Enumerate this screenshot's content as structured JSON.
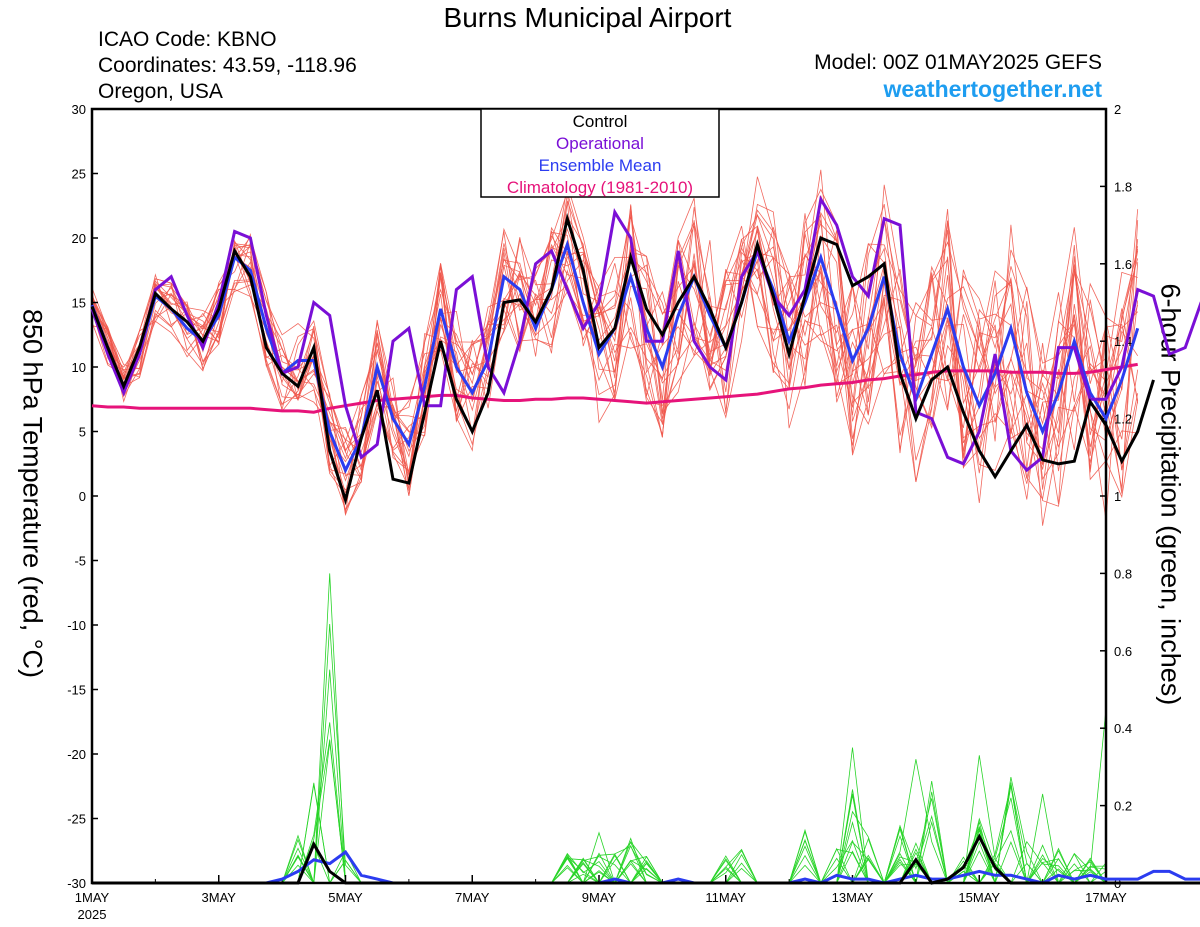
{
  "header": {
    "title": "Burns Municipal Airport",
    "icao": "ICAO Code: KBNO",
    "coords": "Coordinates: 43.59, -118.96",
    "location": "Oregon, USA",
    "model": "Model: 00Z 01MAY2025 GEFS",
    "site": "weathertogether.net"
  },
  "chart_data": {
    "type": "line",
    "ylabel": "850 hPa Temperature (red, °C)",
    "y2label": "6-hour Precipitation (green, inches)",
    "ylim": [
      -30,
      30
    ],
    "y2lim": [
      0,
      2
    ],
    "xlim": [
      0,
      16
    ],
    "yticks": [
      "30",
      "25",
      "20",
      "15",
      "10",
      "5",
      "0",
      "-5",
      "-10",
      "-15",
      "-20",
      "-25",
      "-30"
    ],
    "y2ticks": [
      "2",
      "1.8",
      "1.6",
      "1.4",
      "1.2",
      "1",
      "0.8",
      "0.6",
      "0.4",
      "0.2",
      "0"
    ],
    "xticks": [
      {
        "day": 0,
        "label": "1MAY",
        "sub": "2025"
      },
      {
        "day": 2,
        "label": "3MAY"
      },
      {
        "day": 4,
        "label": "5MAY"
      },
      {
        "day": 6,
        "label": "7MAY"
      },
      {
        "day": 8,
        "label": "9MAY"
      },
      {
        "day": 10,
        "label": "11MAY"
      },
      {
        "day": 12,
        "label": "13MAY"
      },
      {
        "day": 14,
        "label": "15MAY"
      },
      {
        "day": 16,
        "label": "17MAY"
      }
    ],
    "legend": [
      {
        "name": "Control",
        "color": "#000000"
      },
      {
        "name": "Operational",
        "color": "#7a0fd6"
      },
      {
        "name": "Ensemble Mean",
        "color": "#2b3cf0"
      },
      {
        "name": "Climatology (1981-2010)",
        "color": "#e6137a"
      }
    ],
    "colors": {
      "member": "#f0584c",
      "precip": "#28d428",
      "control": "#000000",
      "operational": "#7a0fd6",
      "mean": "#2b3cf0",
      "climo": "#e6137a",
      "site": "#1e9df0"
    },
    "step_days": 0.25,
    "series": [
      {
        "name": "Control",
        "values": [
          14.7,
          11.5,
          8.5,
          11.5,
          15.7,
          14.5,
          13.5,
          12.0,
          14.5,
          19.0,
          17.0,
          11.5,
          9.5,
          8.5,
          11.5,
          3.5,
          -0.3,
          4.5,
          8.2,
          1.3,
          1.0,
          6.5,
          12.0,
          7.5,
          5.0,
          8.0,
          15.0,
          15.2,
          13.5,
          16.0,
          21.5,
          17.5,
          11.5,
          13.0,
          18.5,
          14.5,
          12.5,
          15.0,
          17.0,
          14.5,
          11.5,
          15.0,
          19.5,
          15.5,
          11.0,
          15.5,
          20.0,
          19.5,
          16.3,
          17.0,
          18.0,
          9.5,
          6.0,
          9.0,
          10.0,
          6.5,
          3.5,
          1.5,
          3.5,
          5.5,
          2.8,
          2.5,
          2.7,
          7.3,
          5.5,
          2.7,
          5.0,
          9.0
        ]
      },
      {
        "name": "Operational",
        "values": [
          14.5,
          11.0,
          8.0,
          11.0,
          16.0,
          17.0,
          14.0,
          11.5,
          15.0,
          20.5,
          20.0,
          14.0,
          9.5,
          10.0,
          15.0,
          14.0,
          7.0,
          3.0,
          4.0,
          12.0,
          13.0,
          7.0,
          7.0,
          16.0,
          17.0,
          10.0,
          8.0,
          12.0,
          18.0,
          19.0,
          16.0,
          13.0,
          15.0,
          22.0,
          20.0,
          12.0,
          12.0,
          19.0,
          12.0,
          10.0,
          9.0,
          17.0,
          19.0,
          15.5,
          14.0,
          16.0,
          23.0,
          21.0,
          17.0,
          15.5,
          21.5,
          21.0,
          6.5,
          6.0,
          3.0,
          2.5,
          5.0,
          11.0,
          3.5,
          2.0,
          3.0,
          11.5,
          11.5,
          7.5,
          7.5,
          10.0,
          16.0,
          15.5,
          11.0,
          11.5,
          15.0,
          17.3,
          16.0,
          7.0,
          6.3,
          5.5,
          7.0,
          9.0
        ]
      },
      {
        "name": "Ensemble Mean",
        "values": [
          14.8,
          11.5,
          8.5,
          11.0,
          15.5,
          14.5,
          13.0,
          12.0,
          14.0,
          18.5,
          17.5,
          13.0,
          9.5,
          10.5,
          10.5,
          5.0,
          2.0,
          4.5,
          10.0,
          6.0,
          4.0,
          8.5,
          14.5,
          10.0,
          8.0,
          10.5,
          17.0,
          16.0,
          13.0,
          16.0,
          19.5,
          15.0,
          11.0,
          13.0,
          17.0,
          13.0,
          10.0,
          14.0,
          17.0,
          14.0,
          11.5,
          15.0,
          19.0,
          16.0,
          12.0,
          15.0,
          18.5,
          14.5,
          10.5,
          13.0,
          17.0,
          11.0,
          7.5,
          11.0,
          14.5,
          10.0,
          7.0,
          9.5,
          13.0,
          8.0,
          5.0,
          8.0,
          12.0,
          8.0,
          6.0,
          9.0,
          13.0
        ]
      },
      {
        "name": "Climatology (1981-2010)",
        "values": [
          7.0,
          6.9,
          6.9,
          6.8,
          6.8,
          6.8,
          6.8,
          6.8,
          6.8,
          6.8,
          6.8,
          6.7,
          6.6,
          6.6,
          6.5,
          6.8,
          7.0,
          7.2,
          7.4,
          7.5,
          7.6,
          7.7,
          7.8,
          7.8,
          7.6,
          7.5,
          7.4,
          7.4,
          7.5,
          7.5,
          7.6,
          7.6,
          7.5,
          7.4,
          7.3,
          7.2,
          7.3,
          7.4,
          7.5,
          7.6,
          7.7,
          7.8,
          7.9,
          8.1,
          8.3,
          8.4,
          8.6,
          8.7,
          8.8,
          9.0,
          9.1,
          9.3,
          9.4,
          9.6,
          9.7,
          9.7,
          9.7,
          9.7,
          9.6,
          9.6,
          9.6,
          9.5,
          9.5,
          9.6,
          9.8,
          10.0,
          10.2
        ]
      },
      {
        "name": "Control precipitation",
        "values": [
          0,
          0,
          0,
          0,
          0,
          0,
          0,
          0,
          0,
          0,
          0,
          0,
          0,
          0,
          0.1,
          0.03,
          0,
          0,
          0,
          0,
          0,
          0,
          0,
          0,
          0,
          0,
          0,
          0,
          0,
          0,
          0,
          0,
          0,
          0,
          0,
          0,
          0,
          0,
          0,
          0,
          0,
          0,
          0,
          0,
          0,
          0,
          0,
          0,
          0,
          0,
          0,
          0,
          0.06,
          0,
          0.01,
          0.04,
          0.12,
          0.04,
          0,
          0,
          0,
          0,
          0,
          0,
          0,
          0,
          0,
          0,
          0,
          0,
          0,
          0,
          0
        ]
      },
      {
        "name": "Mean precipitation",
        "values": [
          0,
          0,
          0,
          0,
          0,
          0,
          0,
          0,
          0,
          0,
          0,
          0,
          0.01,
          0.03,
          0.06,
          0.05,
          0.08,
          0.02,
          0.01,
          0,
          0,
          0,
          0,
          0,
          0,
          0,
          0,
          0,
          0,
          0,
          0,
          0,
          0,
          0.01,
          0,
          0,
          0,
          0.01,
          0,
          0,
          0,
          0,
          0,
          0,
          0,
          0.01,
          0,
          0.02,
          0.01,
          0.01,
          0,
          0.01,
          0.02,
          0.01,
          0.01,
          0.02,
          0.03,
          0.02,
          0.02,
          0.01,
          0,
          0.02,
          0.01,
          0.02,
          0.01,
          0.01,
          0.01,
          0.03,
          0.03,
          0.01,
          0.01,
          0.02
        ]
      }
    ]
  }
}
